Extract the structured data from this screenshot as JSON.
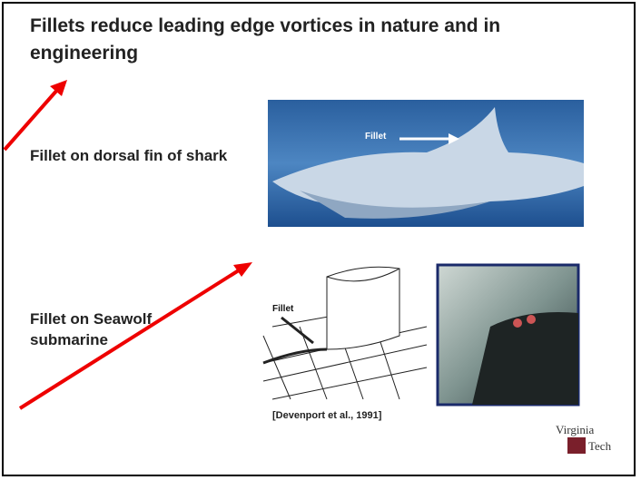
{
  "title": "Fillets reduce leading edge vortices in nature and in engineering",
  "items": [
    {
      "label": "Fillet on dorsal fin of shark",
      "image_label": "Fillet"
    },
    {
      "label": "Fillet on Seawolf submarine",
      "image_label": "Fillet"
    }
  ],
  "citation": "[Devenport et al., 1991]",
  "logo": {
    "line1": "Virginia",
    "line2": "Tech"
  }
}
